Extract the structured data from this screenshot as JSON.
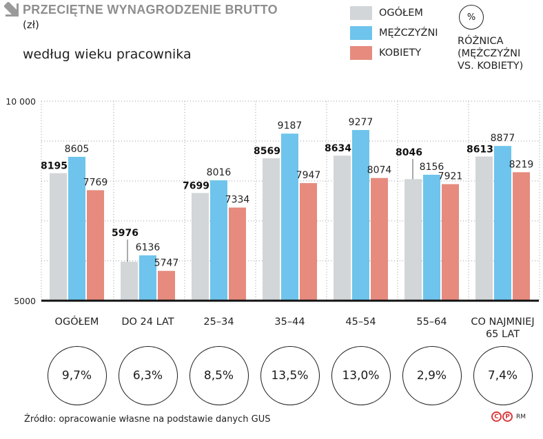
{
  "header": {
    "title": "PRZECIĘTNE WYNAGRODZENIE BRUTTO",
    "unit": "(zł)",
    "subtitle": "według wieku pracownika"
  },
  "legend": [
    {
      "label": "OGÓŁEM",
      "color": "#d2d6d9"
    },
    {
      "label": "MĘŻCZYŹNI",
      "color": "#6ec4ec"
    },
    {
      "label": "KOBIETY",
      "color": "#e68b7e"
    }
  ],
  "difference": {
    "badge": "%",
    "caption_lines": [
      "RÓŻNICA",
      "(MĘŻCZYŹNI",
      "VS. KOBIETY)"
    ]
  },
  "chart_data": {
    "type": "bar",
    "categories": [
      "OGÓŁEM",
      "DO 24 LAT",
      "25–34",
      "35–44",
      "45–54",
      "55–64",
      "CO NAJMNIEJ 65 LAT"
    ],
    "category_lines": [
      [
        "OGÓŁEM"
      ],
      [
        "DO 24 LAT"
      ],
      [
        "25–34"
      ],
      [
        "35–44"
      ],
      [
        "45–54"
      ],
      [
        "55–64"
      ],
      [
        "CO NAJMNIEJ",
        "65 LAT"
      ]
    ],
    "series": [
      {
        "name": "OGÓŁEM",
        "color": "#d2d6d9",
        "values": [
          8195,
          5976,
          7699,
          8569,
          8634,
          8046,
          8613
        ]
      },
      {
        "name": "MĘŻCZYŹNI",
        "color": "#6ec4ec",
        "values": [
          8605,
          6136,
          8016,
          9187,
          9277,
          8156,
          8877
        ]
      },
      {
        "name": "KOBIETY",
        "color": "#e68b7e",
        "values": [
          7769,
          5747,
          7334,
          7947,
          8074,
          7921,
          8219
        ]
      }
    ],
    "ylim": [
      5000,
      10000
    ],
    "ytick_labels": [
      "5000",
      "10 000"
    ],
    "grid": true,
    "differences": [
      "9,7%",
      "6,3%",
      "8,5%",
      "13,5%",
      "13,0%",
      "2,9%",
      "7,4%"
    ]
  },
  "source": "Źródło: opracowanie własne na podstawie danych GUS",
  "copyright": {
    "symbols": [
      "C",
      "P"
    ],
    "author": "RM"
  }
}
